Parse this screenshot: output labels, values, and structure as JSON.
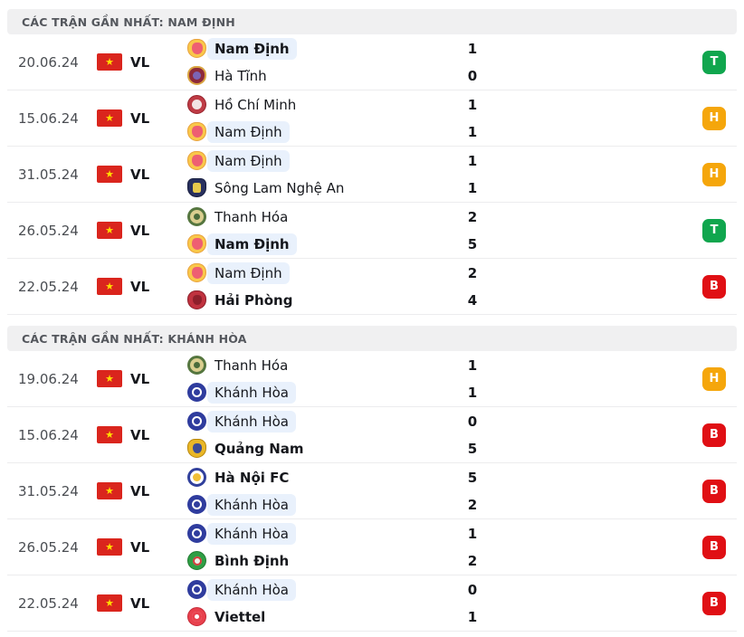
{
  "colors": {
    "win_badge": "#10A64E",
    "draw_badge": "#F5A60B",
    "loss_badge": "#E00F14",
    "highlight_team_bg": "#E9F1FC",
    "section_header_bg": "#F0F0F1",
    "flag_red": "#DA251D",
    "flag_star": "#FFDE00"
  },
  "sections": [
    {
      "title": "CÁC TRẬN GẦN NHẤT: NAM ĐỊNH",
      "rows": [
        {
          "date": "20.06.24",
          "competition": "VL",
          "result": "T",
          "teams": [
            {
              "name": "Nam Định",
              "score": "1",
              "logo": "nam-dinh",
              "bold": true,
              "highlight": true
            },
            {
              "name": "Hà Tĩnh",
              "score": "0",
              "logo": "ha-tinh",
              "bold": false,
              "highlight": false
            }
          ]
        },
        {
          "date": "15.06.24",
          "competition": "VL",
          "result": "H",
          "teams": [
            {
              "name": "Hồ Chí Minh",
              "score": "1",
              "logo": "ho-chi-minh",
              "bold": false,
              "highlight": false
            },
            {
              "name": "Nam Định",
              "score": "1",
              "logo": "nam-dinh",
              "bold": false,
              "highlight": true
            }
          ]
        },
        {
          "date": "31.05.24",
          "competition": "VL",
          "result": "H",
          "teams": [
            {
              "name": "Nam Định",
              "score": "1",
              "logo": "nam-dinh",
              "bold": false,
              "highlight": true
            },
            {
              "name": "Sông Lam Nghệ An",
              "score": "1",
              "logo": "song-lam",
              "bold": false,
              "highlight": false
            }
          ]
        },
        {
          "date": "26.05.24",
          "competition": "VL",
          "result": "T",
          "teams": [
            {
              "name": "Thanh Hóa",
              "score": "2",
              "logo": "thanh-hoa",
              "bold": false,
              "highlight": false
            },
            {
              "name": "Nam Định",
              "score": "5",
              "logo": "nam-dinh",
              "bold": true,
              "highlight": true
            }
          ]
        },
        {
          "date": "22.05.24",
          "competition": "VL",
          "result": "B",
          "teams": [
            {
              "name": "Nam Định",
              "score": "2",
              "logo": "nam-dinh",
              "bold": false,
              "highlight": true
            },
            {
              "name": "Hải Phòng",
              "score": "4",
              "logo": "hai-phong",
              "bold": true,
              "highlight": false
            }
          ]
        }
      ]
    },
    {
      "title": "CÁC TRẬN GẦN NHẤT: KHÁNH HÒA",
      "rows": [
        {
          "date": "19.06.24",
          "competition": "VL",
          "result": "H",
          "teams": [
            {
              "name": "Thanh Hóa",
              "score": "1",
              "logo": "thanh-hoa",
              "bold": false,
              "highlight": false
            },
            {
              "name": "Khánh Hòa",
              "score": "1",
              "logo": "khanh-hoa",
              "bold": false,
              "highlight": true
            }
          ]
        },
        {
          "date": "15.06.24",
          "competition": "VL",
          "result": "B",
          "teams": [
            {
              "name": "Khánh Hòa",
              "score": "0",
              "logo": "khanh-hoa",
              "bold": false,
              "highlight": true
            },
            {
              "name": "Quảng Nam",
              "score": "5",
              "logo": "quang-nam",
              "bold": true,
              "highlight": false
            }
          ]
        },
        {
          "date": "31.05.24",
          "competition": "VL",
          "result": "B",
          "teams": [
            {
              "name": "Hà Nội FC",
              "score": "5",
              "logo": "ha-noi",
              "bold": true,
              "highlight": false
            },
            {
              "name": "Khánh Hòa",
              "score": "2",
              "logo": "khanh-hoa",
              "bold": false,
              "highlight": true
            }
          ]
        },
        {
          "date": "26.05.24",
          "competition": "VL",
          "result": "B",
          "teams": [
            {
              "name": "Khánh Hòa",
              "score": "1",
              "logo": "khanh-hoa",
              "bold": false,
              "highlight": true
            },
            {
              "name": "Bình Định",
              "score": "2",
              "logo": "binh-dinh",
              "bold": true,
              "highlight": false
            }
          ]
        },
        {
          "date": "22.05.24",
          "competition": "VL",
          "result": "B",
          "teams": [
            {
              "name": "Khánh Hòa",
              "score": "0",
              "logo": "khanh-hoa",
              "bold": false,
              "highlight": true
            },
            {
              "name": "Viettel",
              "score": "1",
              "logo": "viettel",
              "bold": true,
              "highlight": false
            }
          ]
        }
      ]
    }
  ]
}
